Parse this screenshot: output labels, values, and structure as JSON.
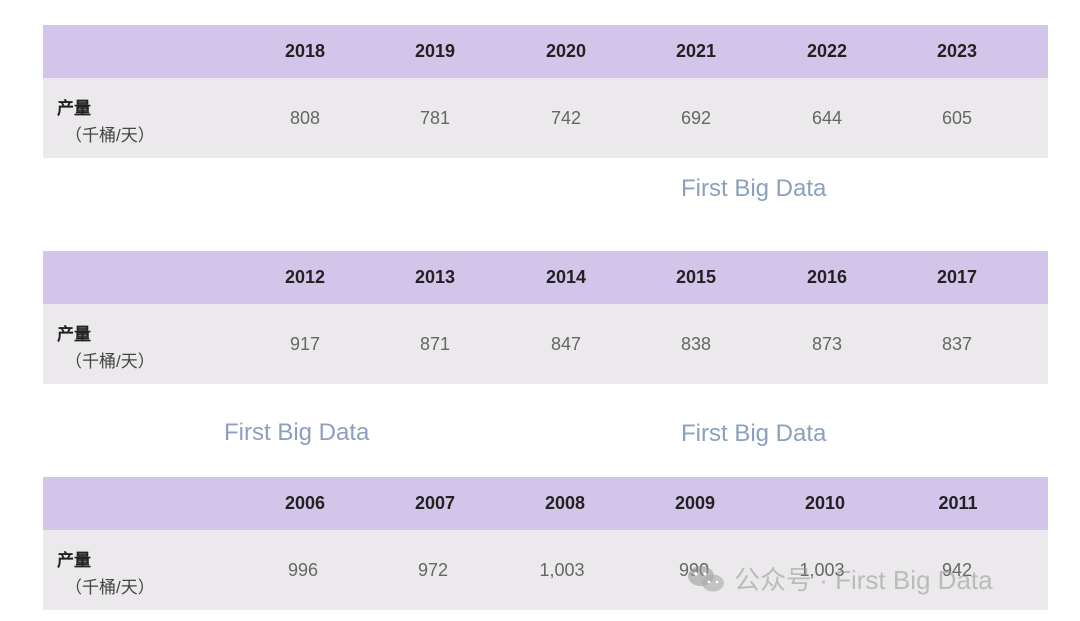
{
  "label_main": "产量",
  "label_unit": "（千桶/天）",
  "tables": [
    {
      "years": [
        "2018",
        "2019",
        "2020",
        "2021",
        "2022",
        "2023"
      ],
      "values": [
        "808",
        "781",
        "742",
        "692",
        "644",
        "605"
      ]
    },
    {
      "years": [
        "2012",
        "2013",
        "2014",
        "2015",
        "2016",
        "2017"
      ],
      "values": [
        "917",
        "871",
        "847",
        "838",
        "873",
        "837"
      ]
    },
    {
      "years": [
        "2006",
        "2007",
        "2008",
        "2009",
        "2010",
        "2011"
      ],
      "values": [
        "996",
        "972",
        "1,003",
        "990",
        "1,003",
        "942"
      ]
    }
  ],
  "watermarks": {
    "wm1": "First Big Data",
    "wm2": "First Big Data",
    "wm3": "First Big Data",
    "wechat_text": "公众号 · First Big Data"
  },
  "colors": {
    "header_bg": "#d3c5ea",
    "row_bg": "#ebe9eb",
    "watermark": "#8aa0be"
  }
}
